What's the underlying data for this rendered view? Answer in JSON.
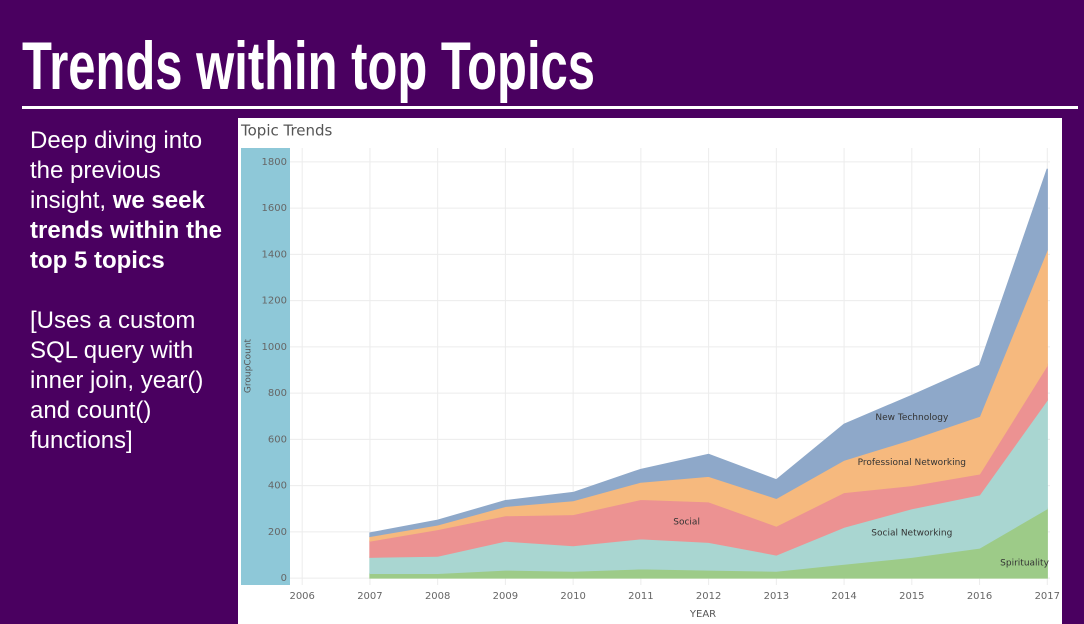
{
  "slide": {
    "title": "Trends within top Topics",
    "paragraphs": [
      {
        "text": "Deep diving into the previous insight, ",
        "bold": "we seek trends within the top 5 topics"
      },
      {
        "text": "[Uses a custom SQL query with inner join, year() and count() functions]"
      }
    ]
  },
  "chart_data": {
    "type": "stacked-area",
    "title": "Topic Trends",
    "x_label": "YEAR",
    "y_label": "GroupCount",
    "x": [
      2007,
      2008,
      2009,
      2010,
      2011,
      2012,
      2013,
      2014,
      2015,
      2016,
      2017
    ],
    "xlim": [
      2005.82,
      2017.04
    ],
    "xticks": [
      2006,
      2007,
      2008,
      2009,
      2010,
      2011,
      2012,
      2013,
      2014,
      2015,
      2016,
      2017
    ],
    "ylim": [
      -30,
      1860
    ],
    "yticks": [
      0,
      200,
      400,
      600,
      800,
      1000,
      1200,
      1400,
      1600,
      1800
    ],
    "grid": true,
    "series": [
      {
        "name": "Spirituality",
        "color": "#9dcb88",
        "values": [
          20,
          20,
          35,
          30,
          40,
          35,
          30,
          60,
          90,
          130,
          300
        ]
      },
      {
        "name": "Social Networking",
        "color": "#a9d6d1",
        "values": [
          70,
          75,
          125,
          110,
          130,
          120,
          70,
          160,
          210,
          230,
          470
        ]
      },
      {
        "name": "Social",
        "color": "#ec9292",
        "values": [
          70,
          115,
          110,
          135,
          170,
          175,
          125,
          150,
          100,
          90,
          150
        ]
      },
      {
        "name": "Professional Networking",
        "color": "#f6b97e",
        "values": [
          20,
          20,
          40,
          60,
          75,
          110,
          120,
          140,
          200,
          250,
          500
        ]
      },
      {
        "name": "New Technology",
        "color": "#8ea8c9",
        "values": [
          15,
          20,
          25,
          35,
          55,
          95,
          80,
          155,
          190,
          220,
          350
        ]
      }
    ]
  }
}
